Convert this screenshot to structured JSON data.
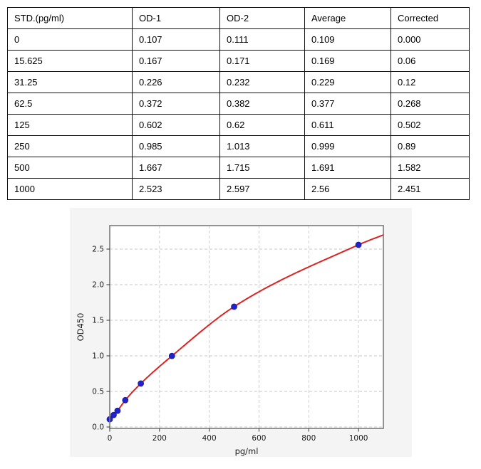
{
  "table": {
    "headers": [
      "STD.(pg/ml)",
      "OD-1",
      "OD-2",
      "Average",
      "Corrected"
    ],
    "rows": [
      [
        "0",
        "0.107",
        "0.111",
        "0.109",
        "0.000"
      ],
      [
        "15.625",
        "0.167",
        "0.171",
        "0.169",
        "0.06"
      ],
      [
        "31.25",
        "0.226",
        "0.232",
        "0.229",
        "0.12"
      ],
      [
        "62.5",
        "0.372",
        "0.382",
        "0.377",
        "0.268"
      ],
      [
        "125",
        "0.602",
        "0.62",
        "0.611",
        "0.502"
      ],
      [
        "250",
        "0.985",
        "1.013",
        "0.999",
        "0.89"
      ],
      [
        "500",
        "1.667",
        "1.715",
        "1.691",
        "1.582"
      ],
      [
        "1000",
        "2.523",
        "2.597",
        "2.56",
        "2.451"
      ]
    ]
  },
  "chart_data": {
    "type": "scatter",
    "title": "",
    "xlabel": "pg/ml",
    "ylabel": "OD450",
    "x": [
      0,
      15.625,
      31.25,
      62.5,
      125,
      250,
      500,
      1000
    ],
    "y": [
      0.109,
      0.169,
      0.229,
      0.377,
      0.611,
      0.999,
      1.691,
      2.56
    ],
    "fit_curve": {
      "description": "smooth fitted standard curve through the data points",
      "end_point": {
        "x": 1100,
        "y": 2.7
      }
    },
    "xlim": [
      0,
      1100
    ],
    "ylim": [
      0,
      2.85
    ],
    "xticks": [
      0,
      200,
      400,
      600,
      800,
      1000
    ],
    "xtick_labels": [
      "0",
      "200",
      "400",
      "600",
      "800",
      "1000"
    ],
    "yticks": [
      0,
      0.5,
      1.0,
      1.5,
      2.0,
      2.5
    ],
    "ytick_labels": [
      "0.0",
      "0.5",
      "1.0",
      "1.5",
      "2.0",
      "2.5"
    ],
    "grid": true,
    "legend": "none",
    "colors": {
      "curve": "#dd2222",
      "points": "#2222cc",
      "point_edge": "#1a1a99",
      "figure_bg": "#f4f4f4",
      "plot_bg": "#ffffff",
      "spine": "#7a7a7a",
      "grid": "#c9c9c9",
      "tick_text": "#1a1a1a"
    }
  }
}
